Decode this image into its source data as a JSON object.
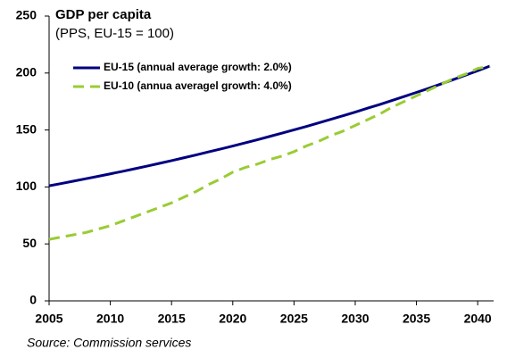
{
  "chart_data": {
    "type": "line",
    "title": "GDP per capita",
    "subtitle": "(PPS, EU-15 = 100)",
    "source": "Source: Commission services",
    "x": [
      2005,
      2006,
      2007,
      2008,
      2009,
      2010,
      2011,
      2012,
      2013,
      2014,
      2015,
      2016,
      2017,
      2018,
      2019,
      2020,
      2021,
      2022,
      2023,
      2024,
      2025,
      2026,
      2027,
      2028,
      2029,
      2030,
      2031,
      2032,
      2033,
      2034,
      2035,
      2036,
      2037,
      2038,
      2039,
      2040,
      2041
    ],
    "series": [
      {
        "name": "EU-15 (annual average growth: 2.0%)",
        "color": "#000080",
        "dash": false,
        "values": [
          101,
          103,
          105.1,
          107.2,
          109.3,
          111.5,
          113.7,
          116,
          118.3,
          120.7,
          123.1,
          125.6,
          128.1,
          130.7,
          133.3,
          135.9,
          138.7,
          141.4,
          144.3,
          147.2,
          150.1,
          153.1,
          156.2,
          159.3,
          162.5,
          165.7,
          169.1,
          172.4,
          175.9,
          179.4,
          183,
          186.6,
          190.4,
          194.2,
          198.1,
          202,
          206.1
        ]
      },
      {
        "name": "EU-10  (annua averagel growth: 4.0%)",
        "color": "#99cc33",
        "dash": true,
        "values": [
          54,
          56,
          58,
          60,
          63,
          66,
          70,
          74,
          78,
          82,
          86,
          91,
          96,
          102,
          107,
          113,
          117,
          120,
          124,
          127,
          131,
          136,
          140,
          145,
          149,
          154,
          159,
          164,
          170,
          175,
          180,
          185,
          190,
          195,
          199,
          204,
          206
        ]
      }
    ],
    "xlim": [
      2005,
      2041.3
    ],
    "xticks": [
      2005,
      2010,
      2015,
      2020,
      2025,
      2030,
      2035,
      2040
    ],
    "ylim": [
      0,
      250
    ],
    "yticks": [
      0,
      50,
      100,
      150,
      200,
      250
    ],
    "grid": false
  }
}
